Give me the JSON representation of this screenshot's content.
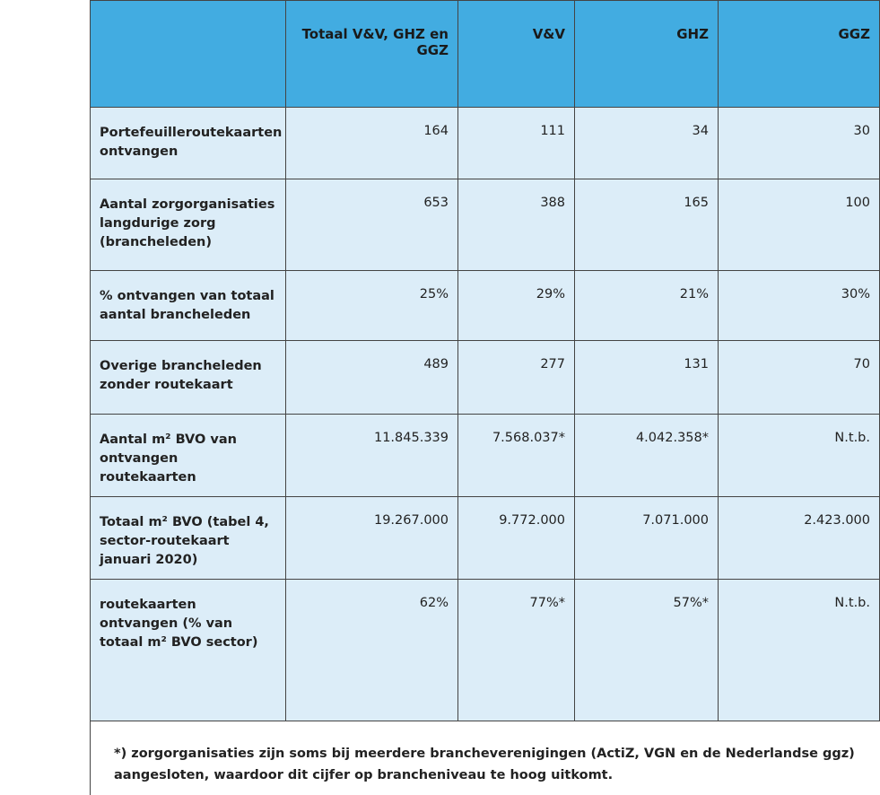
{
  "table": {
    "header": [
      "Totaal V&V, GHZ en GGZ",
      "V&V",
      "GHZ",
      "GGZ"
    ],
    "rows": [
      [
        "Portefeuilleroutekaarten ontvangen",
        "164",
        "111",
        "34",
        "30"
      ],
      [
        "Aantal zorgorganisaties langdurige zorg (brancheleden)",
        "653",
        "388",
        "165",
        "100"
      ],
      [
        "% ontvangen van totaal aantal brancheleden",
        "25%",
        "29%",
        "21%",
        "30%"
      ],
      [
        "Overige brancheleden zonder routekaart",
        "489",
        "277",
        "131",
        "70"
      ],
      [
        "Aantal m² BVO van ontvangen routekaarten",
        "11.845.339",
        "7.568.037*",
        "4.042.358*",
        "N.t.b."
      ],
      [
        "Totaal m² BVO (tabel 4, sector-routekaart januari 2020)",
        "19.267.000",
        "9.772.000",
        "7.071.000",
        "2.423.000"
      ],
      [
        "routekaarten ontvangen (% van totaal m² BVO sector)",
        "62%",
        "77%*",
        "57%*",
        "N.t.b."
      ]
    ],
    "footnote": "*) zorgorganisaties zijn soms bij meerdere brancheverenigingen (ActiZ, VGN en de Nederlandse ggz) aangesloten, waardoor dit cijfer op brancheniveau te hoog uitkomt."
  }
}
